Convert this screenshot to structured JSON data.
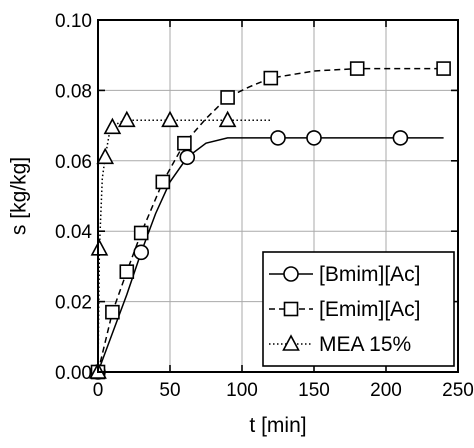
{
  "chart_data": {
    "type": "line",
    "xlabel": "t [min]",
    "ylabel": "s [kg/kg]",
    "xlim": [
      0,
      250
    ],
    "ylim": [
      0,
      0.1
    ],
    "xticks": [
      0,
      50,
      100,
      150,
      200,
      250
    ],
    "yticks": [
      0.0,
      0.02,
      0.04,
      0.06,
      0.08,
      0.1
    ],
    "xtick_labels": [
      "0",
      "50",
      "100",
      "150",
      "200",
      "250"
    ],
    "ytick_labels": [
      "0.00",
      "0.02",
      "0.04",
      "0.06",
      "0.08",
      "0.10"
    ],
    "grid": true,
    "legend_position": "bottom-right",
    "series": [
      {
        "name": "[Bmim][Ac]",
        "marker": "circle",
        "line_style": "solid",
        "points": [
          [
            0,
            0.0
          ],
          [
            30,
            0.034
          ],
          [
            62,
            0.061
          ],
          [
            125,
            0.0665
          ],
          [
            150,
            0.0665
          ],
          [
            210,
            0.0665
          ]
        ],
        "curve": [
          [
            0,
            0.0
          ],
          [
            10,
            0.011
          ],
          [
            20,
            0.022
          ],
          [
            30,
            0.034
          ],
          [
            40,
            0.045
          ],
          [
            50,
            0.054
          ],
          [
            62,
            0.061
          ],
          [
            75,
            0.065
          ],
          [
            90,
            0.0665
          ],
          [
            125,
            0.0665
          ],
          [
            150,
            0.0665
          ],
          [
            210,
            0.0665
          ],
          [
            240,
            0.0665
          ]
        ]
      },
      {
        "name": "[Emim][Ac]",
        "marker": "square",
        "line_style": "dashed",
        "points": [
          [
            0,
            0.0
          ],
          [
            10,
            0.017
          ],
          [
            20,
            0.0285
          ],
          [
            30,
            0.0395
          ],
          [
            45,
            0.054
          ],
          [
            60,
            0.065
          ],
          [
            90,
            0.078
          ],
          [
            120,
            0.0835
          ],
          [
            180,
            0.0862
          ],
          [
            240,
            0.0862
          ]
        ],
        "curve": [
          [
            0,
            0.0
          ],
          [
            10,
            0.017
          ],
          [
            20,
            0.0285
          ],
          [
            30,
            0.0395
          ],
          [
            45,
            0.054
          ],
          [
            60,
            0.065
          ],
          [
            75,
            0.072
          ],
          [
            90,
            0.078
          ],
          [
            105,
            0.081
          ],
          [
            120,
            0.0835
          ],
          [
            150,
            0.0855
          ],
          [
            180,
            0.0862
          ],
          [
            240,
            0.0862
          ]
        ]
      },
      {
        "name": "MEA 15%",
        "marker": "triangle",
        "line_style": "dotted",
        "points": [
          [
            0,
            0.0
          ],
          [
            1,
            0.035
          ],
          [
            5,
            0.061
          ],
          [
            10,
            0.0695
          ],
          [
            20,
            0.0715
          ],
          [
            50,
            0.0715
          ],
          [
            90,
            0.0715
          ]
        ],
        "curve": [
          [
            0,
            0.0
          ],
          [
            1,
            0.035
          ],
          [
            3,
            0.055
          ],
          [
            5,
            0.061
          ],
          [
            8,
            0.068
          ],
          [
            10,
            0.0695
          ],
          [
            15,
            0.071
          ],
          [
            20,
            0.0715
          ],
          [
            50,
            0.0715
          ],
          [
            90,
            0.0715
          ],
          [
            120,
            0.0715
          ]
        ]
      }
    ]
  }
}
